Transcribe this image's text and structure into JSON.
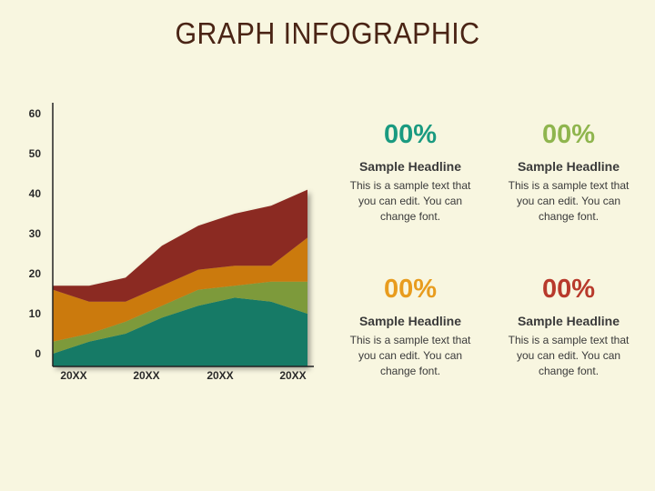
{
  "title": "GRAPH INFOGRAPHIC",
  "chart_data": {
    "type": "area",
    "stacked": true,
    "yticks": [
      0,
      10,
      20,
      30,
      40,
      50,
      60
    ],
    "ylim": [
      0,
      60
    ],
    "categories": [
      "20XX",
      "20XX",
      "20XX",
      "20XX"
    ],
    "x": [
      0,
      1,
      2,
      3,
      4,
      5,
      6,
      7
    ],
    "series": [
      {
        "color": "#177a66",
        "values": [
          0,
          3,
          5,
          9,
          12,
          14,
          13,
          10
        ]
      },
      {
        "color": "#7d9a3a",
        "values": [
          3,
          2,
          3,
          3,
          4,
          3,
          5,
          8
        ]
      },
      {
        "color": "#cb7a10",
        "values": [
          13,
          8,
          5,
          5,
          5,
          5,
          4,
          11
        ]
      },
      {
        "color": "#8b2b22",
        "values": [
          1,
          4,
          6,
          10,
          11,
          13,
          15,
          12
        ]
      }
    ]
  },
  "cards": [
    {
      "value": "00%",
      "color": "#1a9a80",
      "headline": "Sample Headline",
      "text": "This is a sample text that you can edit. You can change font."
    },
    {
      "value": "00%",
      "color": "#8fb54e",
      "headline": "Sample Headline",
      "text": "This is a sample text that you can edit. You can change font."
    },
    {
      "value": "00%",
      "color": "#e89c1e",
      "headline": "Sample Headline",
      "text": "This is a sample text that you can edit. You can change font."
    },
    {
      "value": "00%",
      "color": "#b83a2c",
      "headline": "Sample Headline",
      "text": "This is a sample text that you can edit. You can change font."
    }
  ]
}
